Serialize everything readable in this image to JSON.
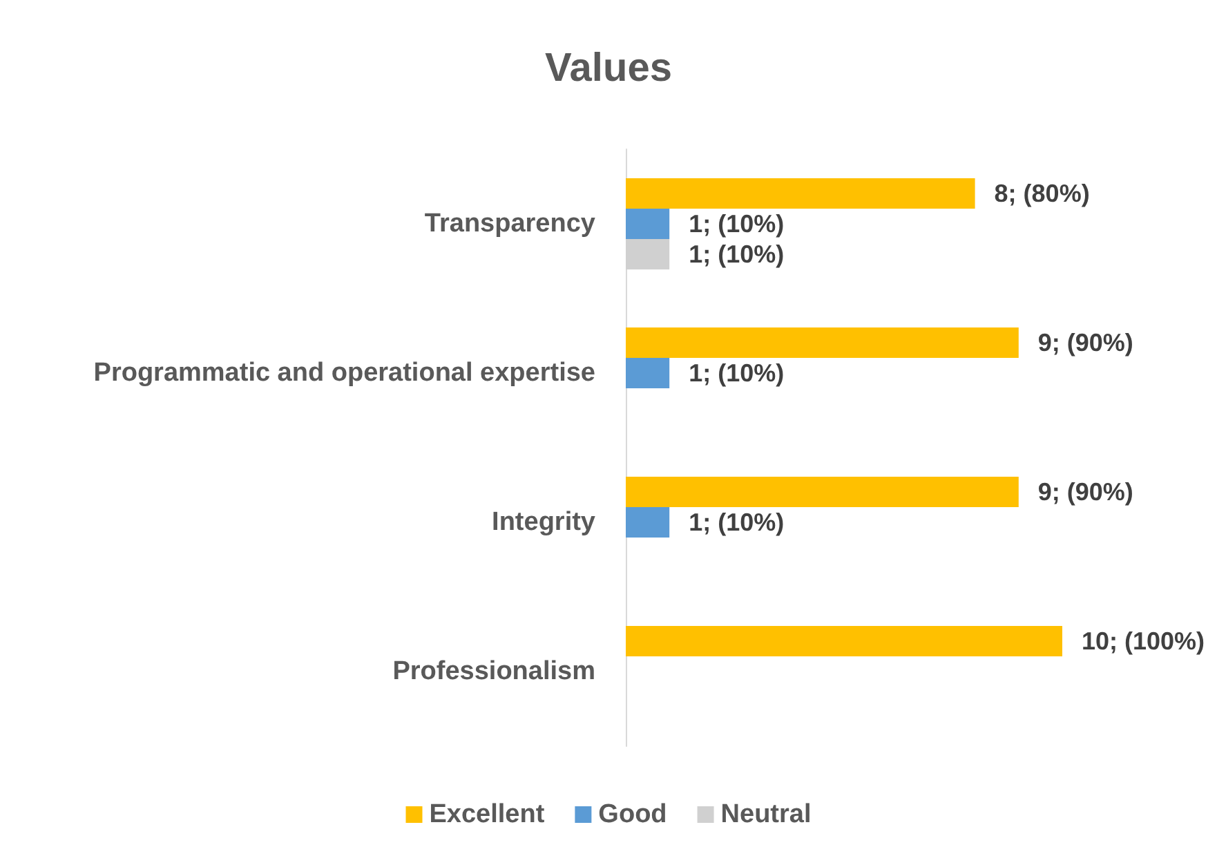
{
  "chart_data": {
    "type": "bar",
    "orientation": "horizontal",
    "title": "Values",
    "categories": [
      "Transparency",
      "Programmatic and operational expertise",
      "Integrity",
      "Professionalism"
    ],
    "series": [
      {
        "name": "Excellent",
        "color": "#ffc000",
        "values": [
          8,
          9,
          9,
          10
        ],
        "value_labels": [
          "8; (80%)",
          "9; (90%)",
          "9; (90%)",
          "10; (100%)"
        ]
      },
      {
        "name": "Good",
        "color": "#5b9bd5",
        "values": [
          1,
          1,
          1,
          null
        ],
        "value_labels": [
          "1; (10%)",
          "1; (10%)",
          "1; (10%)",
          null
        ]
      },
      {
        "name": "Neutral",
        "color": "#d0d0d0",
        "values": [
          1,
          null,
          null,
          null
        ],
        "value_labels": [
          "1; (10%)",
          null,
          null,
          null
        ]
      }
    ],
    "legend": "bottom",
    "grid": false
  }
}
